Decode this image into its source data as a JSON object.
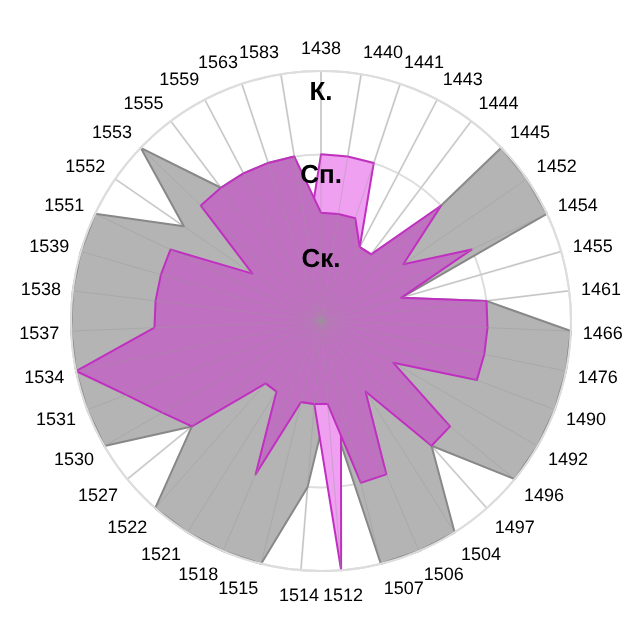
{
  "chart_data": {
    "type": "radar",
    "categories": [
      "1438",
      "1440",
      "1441",
      "1443",
      "1444",
      "1445",
      "1452",
      "1454",
      "1455",
      "1461",
      "1466",
      "1476",
      "1490",
      "1492",
      "1496",
      "1497",
      "1504",
      "1506",
      "1507",
      "1512",
      "1514",
      "1515",
      "1518",
      "1521",
      "1522",
      "1527",
      "1530",
      "1531",
      "1534",
      "1537",
      "1538",
      "1539",
      "1551",
      "1552",
      "1553",
      "1555",
      "1559",
      "1563",
      "1583"
    ],
    "series": [
      {
        "color": "#b4b4b4",
        "values": [
          0,
          0,
          0,
          0,
          0,
          3,
          3,
          3,
          1,
          2,
          3,
          3,
          3,
          3,
          3,
          2,
          3,
          3,
          3,
          1,
          2,
          3,
          3,
          3,
          3,
          2,
          3,
          3,
          3,
          3,
          3,
          3,
          3,
          2,
          3,
          2,
          2,
          2,
          2
        ]
      },
      {
        "color": "#f0a0f0",
        "values": [
          2,
          2,
          2,
          1,
          1,
          1,
          1,
          1,
          1,
          1,
          1,
          1,
          1,
          1,
          1,
          1,
          1,
          1,
          1,
          3,
          1,
          1,
          1,
          1,
          1,
          1,
          1,
          1,
          1,
          1,
          1,
          1,
          1,
          1,
          1,
          1,
          1,
          1,
          1
        ]
      },
      {
        "color": "#c070c0",
        "values": [
          1.3,
          1.3,
          1.3,
          1,
          1,
          2,
          1.2,
          2,
          1,
          2,
          2,
          2,
          2,
          1,
          2,
          2,
          1,
          2,
          2,
          1,
          1,
          1,
          2,
          1,
          1,
          2,
          2.2,
          2.5,
          3,
          2,
          2,
          2,
          2,
          1,
          2,
          2,
          2,
          2,
          2
        ]
      }
    ],
    "ylim": [
      0,
      3
    ],
    "yticks": [
      {
        "value": 1,
        "label": "Ск."
      },
      {
        "value": 2,
        "label": "Сп."
      },
      {
        "value": 3,
        "label": "К."
      }
    ],
    "grid": true
  }
}
